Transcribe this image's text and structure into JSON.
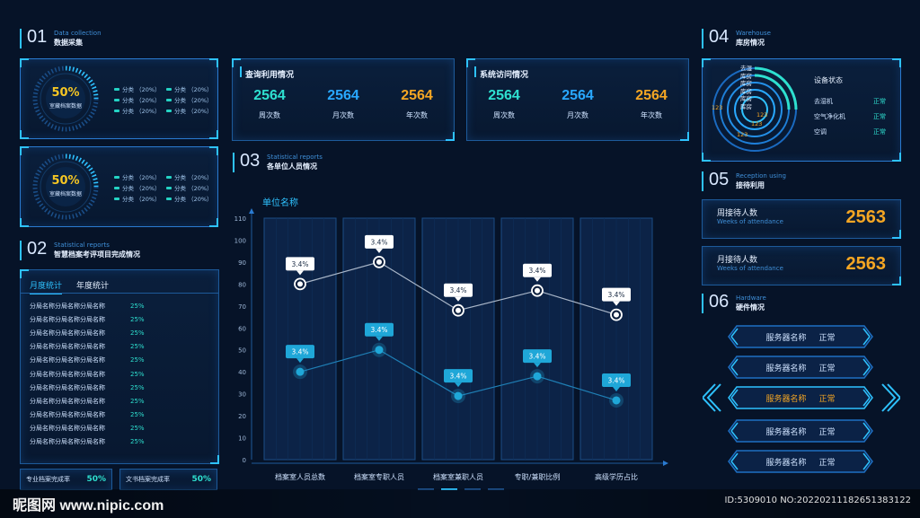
{
  "colors": {
    "bg": "#061328",
    "cyan": "#2ee0d0",
    "blue": "#29a8ff",
    "orange": "#f5a623",
    "accent": "#2ec2ff"
  },
  "sec01": {
    "num": "01",
    "en": "Data collection",
    "cn": "数据采集",
    "gauges": [
      {
        "percent": "50%",
        "label": "室藏档案数据",
        "legend": [
          "分类 （20%）",
          "分类 （20%）",
          "分类 （20%）",
          "分类 （20%）",
          "分类 （20%）",
          "分类 （20%）"
        ]
      },
      {
        "percent": "50%",
        "label": "室藏档案数据",
        "legend": [
          "分类 （20%）",
          "分类 （20%）",
          "分类 （20%）",
          "分类 （20%）",
          "分类 （20%）",
          "分类 （20%）"
        ]
      }
    ]
  },
  "query": {
    "title": "查询利用情况",
    "stats": [
      {
        "value": "2564",
        "label": "周次数"
      },
      {
        "value": "2564",
        "label": "月次数"
      },
      {
        "value": "2564",
        "label": "年次数"
      }
    ]
  },
  "visit": {
    "title": "系统访问情况",
    "stats": [
      {
        "value": "2564",
        "label": "周次数"
      },
      {
        "value": "2564",
        "label": "月次数"
      },
      {
        "value": "2564",
        "label": "年次数"
      }
    ]
  },
  "sec02": {
    "num": "02",
    "en": "Statistical reports",
    "cn": "智慧档案考评项目完成情况",
    "tabs": [
      "月度统计",
      "年度统计"
    ],
    "rows": [
      {
        "name": "分局名称分局名称分局名称",
        "pct": "25%"
      },
      {
        "name": "分局名称分局名称分局名称",
        "pct": "25%"
      },
      {
        "name": "分局名称分局名称分局名称",
        "pct": "25%"
      },
      {
        "name": "分局名称分局名称分局名称",
        "pct": "25%"
      },
      {
        "name": "分局名称分局名称分局名称",
        "pct": "25%"
      },
      {
        "name": "分局名称分局名称分局名称",
        "pct": "25%"
      },
      {
        "name": "分局名称分局名称分局名称",
        "pct": "25%"
      },
      {
        "name": "分局名称分局名称分局名称",
        "pct": "25%"
      },
      {
        "name": "分局名称分局名称分局名称",
        "pct": "25%"
      },
      {
        "name": "分局名称分局名称分局名称",
        "pct": "25%"
      },
      {
        "name": "分局名称分局名称分局名称",
        "pct": "25%"
      }
    ],
    "footer": [
      {
        "label": "专业档案完成率",
        "value": "50%"
      },
      {
        "label": "文书档案完成率",
        "value": "50%"
      }
    ]
  },
  "sec03": {
    "num": "03",
    "en": "Statistical reports",
    "cn": "各单位人员情况"
  },
  "chart_data": {
    "type": "line",
    "title": "单位名称",
    "categories": [
      "档案室人员总数",
      "档案室专职人员",
      "档案室兼职人员",
      "专职/兼职比例",
      "高级学历占比"
    ],
    "yticks": [
      "0",
      "10",
      "20",
      "30",
      "40",
      "50",
      "60",
      "70",
      "80",
      "90",
      "100",
      "110"
    ],
    "ylim": [
      0,
      110
    ],
    "series": [
      {
        "values": [
          80,
          90,
          68,
          77,
          66
        ],
        "labels": [
          "3.4%",
          "3.4%",
          "3.4%",
          "3.4%",
          "3.4%"
        ],
        "color": "#ffffff"
      },
      {
        "values": [
          40,
          50,
          29,
          38,
          27
        ],
        "labels": [
          "3.4%",
          "3.4%",
          "3.4%",
          "3.4%",
          "3.4%"
        ],
        "color": "#1fa7d8"
      }
    ]
  },
  "sec04": {
    "num": "04",
    "en": "Warehouse",
    "cn": "库房情况",
    "ring_labels": [
      "去湿",
      "库房",
      "库房",
      "库房",
      "库房",
      "库房"
    ],
    "ring_values": [
      "123",
      "123",
      "123",
      "123"
    ],
    "status_title": "设备状态",
    "devices": [
      {
        "name": "去湿机",
        "status": "正常"
      },
      {
        "name": "空气净化机",
        "status": "正常"
      },
      {
        "name": "空调",
        "status": "正常"
      }
    ]
  },
  "sec05": {
    "num": "05",
    "en": "Reception using",
    "cn": "接待利用",
    "cards": [
      {
        "title": "周接待人数",
        "sub": "Weeks of attendance",
        "value": "2563"
      },
      {
        "title": "月接待人数",
        "sub": "Weeks of attendance",
        "value": "2563"
      }
    ]
  },
  "sec06": {
    "num": "06",
    "en": "Hardware",
    "cn": "硬件情况",
    "servers": [
      {
        "name": "服务器名称",
        "status": "正常",
        "alert": false
      },
      {
        "name": "服务器名称",
        "status": "正常",
        "alert": false
      },
      {
        "name": "服务器名称",
        "status": "正常",
        "alert": true
      },
      {
        "name": "服务器名称",
        "status": "正常",
        "alert": false
      },
      {
        "name": "服务器名称",
        "status": "正常",
        "alert": false
      }
    ]
  },
  "watermark": {
    "logo": "昵图网 www.nipic.com",
    "id": "ID:5309010 NO:20220211182651383122"
  }
}
